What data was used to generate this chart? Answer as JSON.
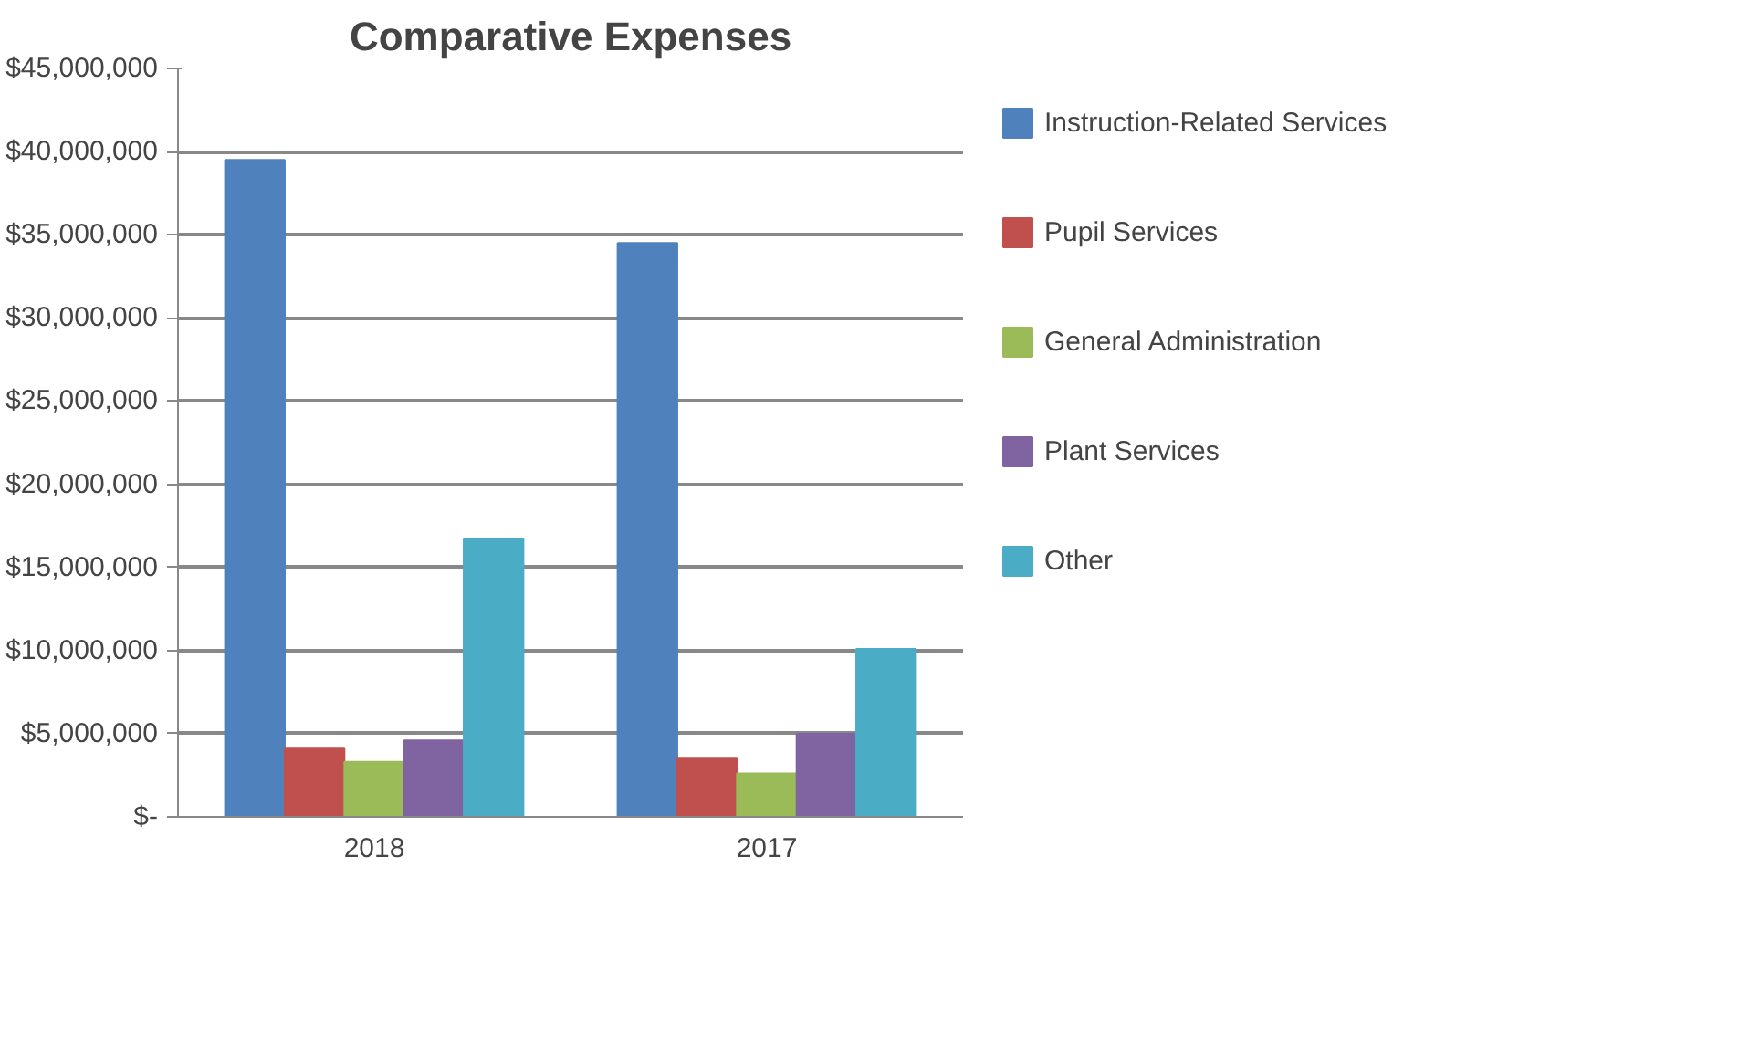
{
  "chart_data": {
    "type": "bar",
    "title": "Comparative Expenses",
    "categories": [
      "2018",
      "2017"
    ],
    "series": [
      {
        "name": "Instruction-Related Services",
        "color": "#4f81bd",
        "values": [
          39500000,
          34500000
        ]
      },
      {
        "name": "Pupil Services",
        "color": "#c0504d",
        "values": [
          4100000,
          3500000
        ]
      },
      {
        "name": "General Administration",
        "color": "#9bbb59",
        "values": [
          3300000,
          2600000
        ]
      },
      {
        "name": "Plant Services",
        "color": "#8064a2",
        "values": [
          4600000,
          5000000
        ]
      },
      {
        "name": "Other",
        "color": "#4bacc6",
        "values": [
          16700000,
          10100000
        ]
      }
    ],
    "ylim": [
      0,
      45000000
    ],
    "yticks": [
      {
        "value": 0,
        "label": "$-"
      },
      {
        "value": 5000000,
        "label": "$5,000,000"
      },
      {
        "value": 10000000,
        "label": "$10,000,000"
      },
      {
        "value": 15000000,
        "label": "$15,000,000"
      },
      {
        "value": 20000000,
        "label": "$20,000,000"
      },
      {
        "value": 25000000,
        "label": "$25,000,000"
      },
      {
        "value": 30000000,
        "label": "$30,000,000"
      },
      {
        "value": 35000000,
        "label": "$35,000,000"
      },
      {
        "value": 40000000,
        "label": "$40,000,000"
      },
      {
        "value": 45000000,
        "label": "$45,000,000"
      }
    ],
    "grid": "y",
    "legend": "right"
  }
}
